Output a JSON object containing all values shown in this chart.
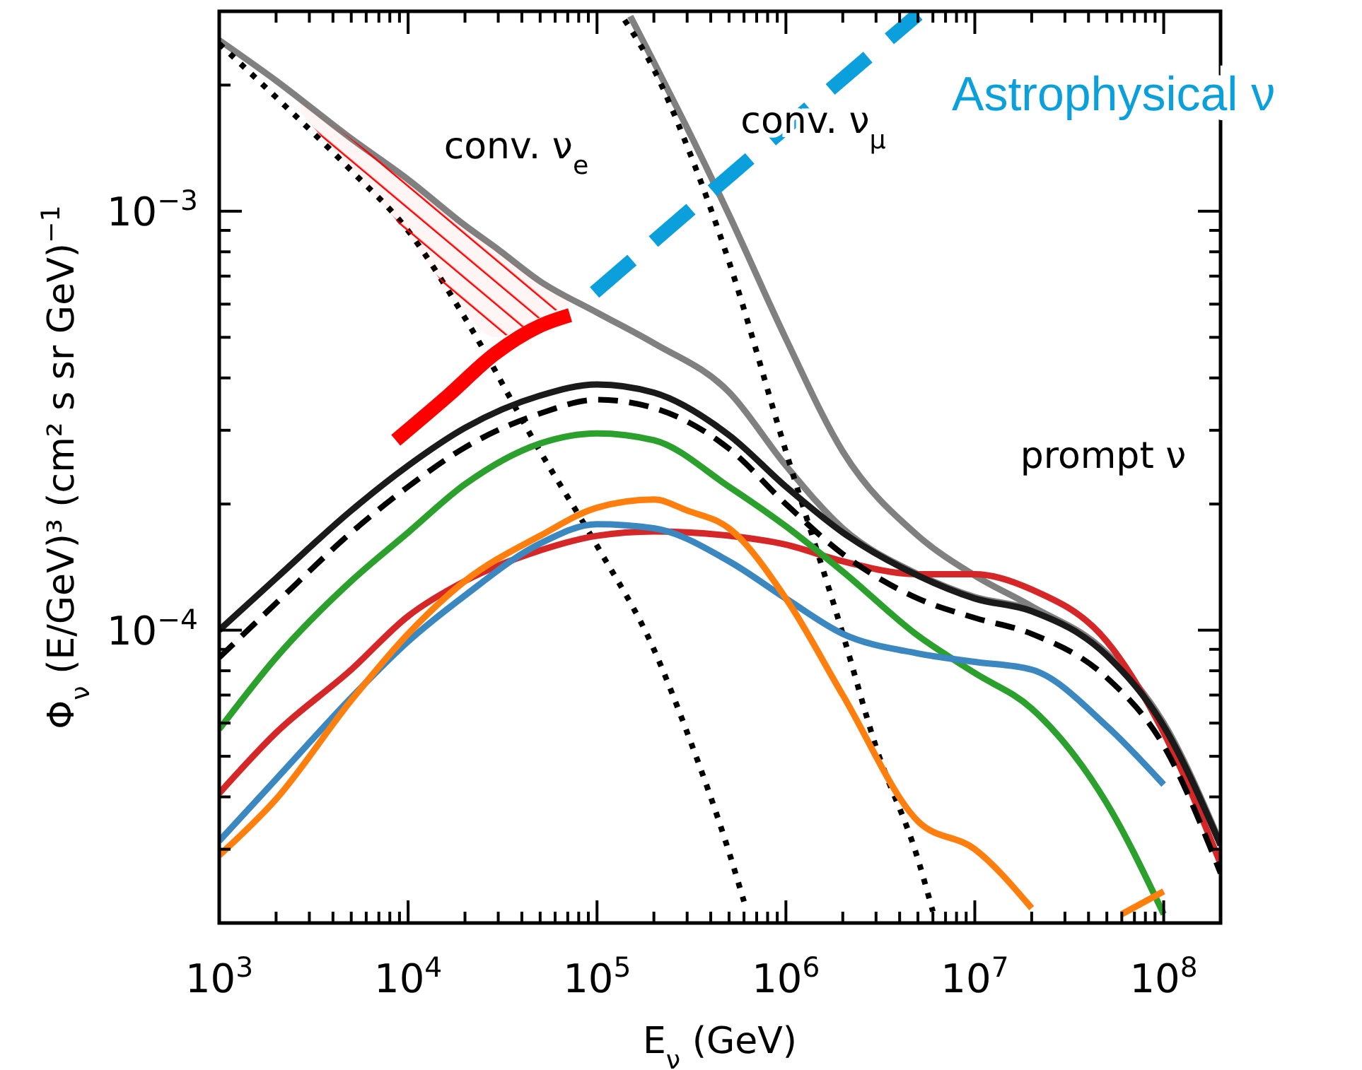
{
  "chart_data": {
    "type": "line",
    "log": "xy",
    "xlabel": "E$_{ν}$ (GeV)",
    "ylabel": "Φ$_{ν}$ (E/GeV)³ (cm² s sr GeV)$^{−1}$",
    "xlim": [
      1000,
      200000000
    ],
    "ylim": [
      2e-05,
      0.003
    ],
    "xticks": [
      {
        "value": 1000,
        "label": "10$^{3}$"
      },
      {
        "value": 2000,
        "label": null
      },
      {
        "value": 3000,
        "label": null
      },
      {
        "value": 4000,
        "label": null
      },
      {
        "value": 5000,
        "label": null
      },
      {
        "value": 6000,
        "label": null
      },
      {
        "value": 7000,
        "label": null
      },
      {
        "value": 8000,
        "label": null
      },
      {
        "value": 9000,
        "label": null
      },
      {
        "value": 10000,
        "label": "10$^{4}$"
      },
      {
        "value": 20000,
        "label": null
      },
      {
        "value": 30000,
        "label": null
      },
      {
        "value": 40000,
        "label": null
      },
      {
        "value": 50000,
        "label": null
      },
      {
        "value": 60000,
        "label": null
      },
      {
        "value": 70000,
        "label": null
      },
      {
        "value": 80000,
        "label": null
      },
      {
        "value": 90000,
        "label": null
      },
      {
        "value": 100000,
        "label": "10$^{5}$"
      },
      {
        "value": 200000,
        "label": null
      },
      {
        "value": 300000,
        "label": null
      },
      {
        "value": 400000,
        "label": null
      },
      {
        "value": 500000,
        "label": null
      },
      {
        "value": 600000,
        "label": null
      },
      {
        "value": 700000,
        "label": null
      },
      {
        "value": 800000,
        "label": null
      },
      {
        "value": 900000,
        "label": null
      },
      {
        "value": 1000000,
        "label": "10$^{6}$"
      },
      {
        "value": 2000000,
        "label": null
      },
      {
        "value": 3000000,
        "label": null
      },
      {
        "value": 4000000,
        "label": null
      },
      {
        "value": 5000000,
        "label": null
      },
      {
        "value": 6000000,
        "label": null
      },
      {
        "value": 7000000,
        "label": null
      },
      {
        "value": 8000000,
        "label": null
      },
      {
        "value": 9000000,
        "label": null
      },
      {
        "value": 10000000,
        "label": "10$^{7}$"
      },
      {
        "value": 20000000,
        "label": null
      },
      {
        "value": 30000000,
        "label": null
      },
      {
        "value": 40000000,
        "label": null
      },
      {
        "value": 50000000,
        "label": null
      },
      {
        "value": 60000000,
        "label": null
      },
      {
        "value": 70000000,
        "label": null
      },
      {
        "value": 80000000,
        "label": null
      },
      {
        "value": 90000000,
        "label": null
      },
      {
        "value": 100000000,
        "label": "10$^{8}$"
      },
      {
        "value": 200000000,
        "label": null
      }
    ],
    "yticks": [
      {
        "value": 2e-05,
        "label": null
      },
      {
        "value": 3e-05,
        "label": null
      },
      {
        "value": 4e-05,
        "label": null
      },
      {
        "value": 5e-05,
        "label": null
      },
      {
        "value": 6e-05,
        "label": null
      },
      {
        "value": 7e-05,
        "label": null
      },
      {
        "value": 8e-05,
        "label": null
      },
      {
        "value": 9e-05,
        "label": null
      },
      {
        "value": 0.0001,
        "label": "10$^{−4}$"
      },
      {
        "value": 0.0002,
        "label": null
      },
      {
        "value": 0.0003,
        "label": null
      },
      {
        "value": 0.0004,
        "label": null
      },
      {
        "value": 0.0005,
        "label": null
      },
      {
        "value": 0.0006,
        "label": null
      },
      {
        "value": 0.0007,
        "label": null
      },
      {
        "value": 0.0008,
        "label": null
      },
      {
        "value": 0.0009,
        "label": null
      },
      {
        "value": 0.001,
        "label": "10$^{−3}$"
      },
      {
        "value": 0.002,
        "label": null
      },
      {
        "value": 0.003,
        "label": null
      }
    ],
    "annotations": [
      "conv. ν$_{e}$",
      "conv. ν$_{μ}$",
      "prompt ν"
    ],
    "series": [
      {
        "color": "#808080",
        "line_style": "solid",
        "x": [
          1000,
          2000,
          5000,
          10000,
          20000,
          30000,
          50000,
          100000,
          200000,
          500000,
          1000000,
          2000000,
          5000000,
          10000000,
          20000000,
          50000000,
          100000000,
          200000000
        ],
        "values": [
          0.00256,
          0.00205,
          0.00149,
          0.00119,
          0.000925,
          0.00081,
          0.00068,
          0.000573,
          0.000484,
          0.00037,
          0.000247,
          0.000175,
          0.000136,
          0.00012,
          0.000112,
          8.8e-05,
          6e-05,
          3.1e-05
        ]
      },
      {
        "color": "#808080",
        "line_style": "solid",
        "x": [
          150000,
          200000,
          300000,
          500000,
          1000000,
          2000000,
          5000000,
          10000000,
          20000000,
          50000000,
          100000000,
          200000000
        ],
        "values": [
          0.00292,
          0.00227,
          0.00158,
          0.00098,
          0.000496,
          0.000267,
          0.000168,
          0.000135,
          0.000114,
          8.8e-05,
          5.9e-05,
          3.07e-05
        ]
      },
      {
        "color": "#000000",
        "line_style": "dotted",
        "x": [
          1000,
          2000,
          5000,
          10000,
          20000,
          50000,
          100000,
          200000,
          300000,
          500000,
          600000
        ],
        "values": [
          0.00251,
          0.00187,
          0.00125,
          0.000898,
          0.000556,
          0.000267,
          0.000159,
          9e-05,
          5.7e-05,
          2.95e-05,
          2.25e-05
        ]
      },
      {
        "color": "#000000",
        "line_style": "dotted",
        "x": [
          140000,
          200000,
          300000,
          500000,
          1000000,
          2000000,
          3000000,
          5000000,
          6000000
        ],
        "values": [
          0.00286,
          0.00218,
          0.00143,
          0.000757,
          0.000267,
          9.8e-05,
          5.26e-05,
          2.84e-05,
          2.13e-05
        ]
      },
      {
        "color": "#d62728",
        "line_style": "solid",
        "x": [
          1000,
          2000,
          5000,
          10000,
          20000,
          50000,
          100000,
          200000,
          500000,
          1000000,
          2000000,
          5000000,
          10000000,
          20000000,
          50000000,
          100000000,
          200000000
        ],
        "values": [
          4.08e-05,
          5.69e-05,
          8.05e-05,
          0.000108,
          0.000131,
          0.000155,
          0.000168,
          0.000172,
          0.000168,
          0.00016,
          0.000146,
          0.000136,
          0.000136,
          0.000125,
          9.4e-05,
          5.69e-05,
          2.77e-05
        ]
      },
      {
        "color": "#2ca02c",
        "line_style": "solid",
        "x": [
          1000,
          2000,
          5000,
          10000,
          20000,
          50000,
          100000,
          200000,
          500000,
          1000000,
          2000000,
          5000000,
          10000000,
          20000000,
          50000000,
          100000000
        ],
        "values": [
          5.8e-05,
          8.6e-05,
          0.000131,
          0.000171,
          0.000223,
          0.000279,
          0.000295,
          0.000284,
          0.00022,
          0.000177,
          0.000138,
          9.7e-05,
          7.9e-05,
          6.5e-05,
          3.86e-05,
          2.1e-05
        ]
      },
      {
        "color": "#3b87c0",
        "line_style": "solid",
        "x": [
          1000,
          2000,
          5000,
          10000,
          20000,
          50000,
          100000,
          200000,
          500000,
          1000000,
          2000000,
          5000000,
          10000000,
          20000000,
          50000000,
          100000000
        ],
        "values": [
          3.14e-05,
          4.41e-05,
          6.9e-05,
          9.4e-05,
          0.000121,
          0.000161,
          0.000179,
          0.000175,
          0.000146,
          0.000119,
          9.8e-05,
          8.8e-05,
          8.4e-05,
          8.05e-05,
          5.9e-05,
          4.28e-05
        ]
      },
      {
        "color": "#ff7f0e",
        "line_style": "solid",
        "x": [
          1000,
          2000,
          5000,
          10000,
          20000,
          50000,
          100000,
          200000,
          300000,
          500000,
          1000000,
          2000000,
          5000000,
          10000000,
          20000000,
          30000000,
          60000000,
          100000000
        ],
        "values": [
          2.9e-05,
          3.95e-05,
          6.8e-05,
          9.8e-05,
          0.000131,
          0.000168,
          0.000196,
          0.000205,
          0.000193,
          0.000175,
          0.000119,
          7e-05,
          3.5e-05,
          3e-05,
          2.17e-05,
          null,
          2.1e-05,
          2.38e-05
        ]
      },
      {
        "color": "#1a1a1a",
        "line_style": "solid",
        "x": [
          1000,
          2000,
          5000,
          10000,
          20000,
          50000,
          100000,
          200000,
          500000,
          1000000,
          2000000,
          5000000,
          10000000,
          20000000,
          50000000,
          100000000,
          200000000
        ],
        "values": [
          0.0001,
          0.000133,
          0.000193,
          0.000247,
          0.000304,
          0.000363,
          0.000386,
          0.000369,
          0.000292,
          0.00022,
          0.000171,
          0.000135,
          0.000119,
          0.000111,
          8.7e-05,
          5.9e-05,
          3.07e-05
        ]
      },
      {
        "color": "#000000",
        "line_style": "dashed",
        "x": [
          1000,
          2000,
          5000,
          10000,
          20000,
          50000,
          100000,
          200000,
          500000,
          1000000,
          2000000,
          5000000,
          10000000,
          20000000,
          50000000,
          100000000,
          200000000
        ],
        "values": [
          8.6e-05,
          0.000116,
          0.000171,
          0.00022,
          0.000273,
          0.000329,
          0.000355,
          0.000339,
          0.000271,
          0.0002,
          0.000152,
          0.000119,
          0.000107,
          9.8e-05,
          7.7e-05,
          5.3e-05,
          2.63e-05
        ]
      },
      {
        "color": "#ff0000",
        "line_style": "solid",
        "x": [
          2700,
          5000,
          8600,
          16300,
          29000,
          51000,
          72000
        ],
        "values": [
          null,
          null,
          0.000284,
          0.000363,
          0.000458,
          0.000535,
          0.000565
        ],
        "lower": [
          0.00172,
          0.00125,
          0.000955,
          0.00065,
          0.0005,
          0.00056,
          0.0006
        ],
        "upper": [
          0.00185,
          0.00149,
          0.00124,
          0.000985,
          0.00081,
          0.00067,
          0.00061
        ]
      },
      {
        "name": "Astrophysical ν",
        "color": "#0ba0dc",
        "line_style": "dashed",
        "x": [
          97000,
          700000,
          5000000
        ],
        "values": [
          0.00064,
          0.00138,
          0.00295
        ]
      }
    ]
  }
}
